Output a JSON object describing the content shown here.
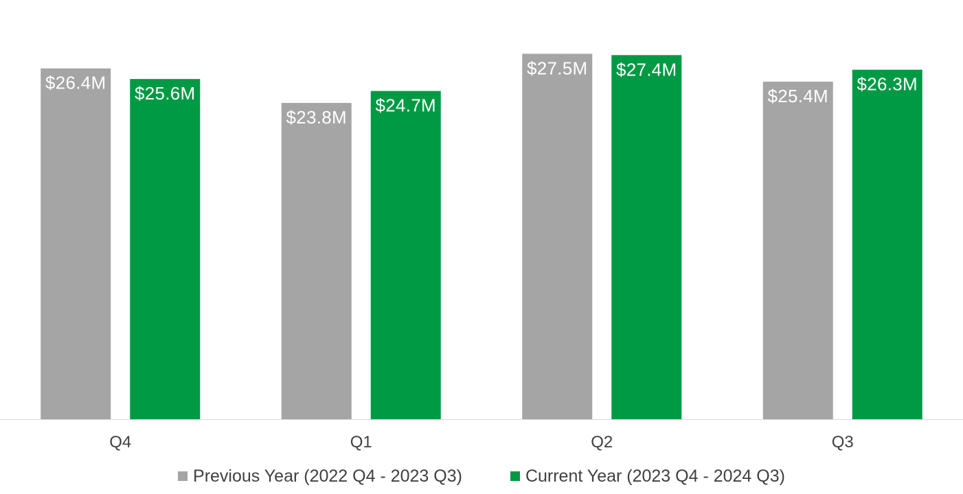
{
  "chart_data": {
    "type": "bar",
    "categories": [
      "Q4",
      "Q1",
      "Q2",
      "Q3"
    ],
    "series": [
      {
        "name": "Previous Year (2022 Q4 - 2023 Q3)",
        "values": [
          26.4,
          23.8,
          27.5,
          25.4
        ],
        "labels": [
          "$26.4M",
          "$23.8M",
          "$27.5M",
          "$25.4M"
        ],
        "color": "#a5a5a5"
      },
      {
        "name": "Current Year (2023 Q4 - 2024 Q3)",
        "values": [
          25.6,
          24.7,
          27.4,
          26.3
        ],
        "labels": [
          "$25.6M",
          "$24.7M",
          "$27.4M",
          "$26.3M"
        ],
        "color": "#009a44"
      }
    ],
    "title": "",
    "xlabel": "",
    "ylabel": "",
    "ylim": [
      0,
      28.5
    ],
    "grid": false,
    "legend_position": "bottom",
    "axis_color": "#d9d9d9"
  }
}
